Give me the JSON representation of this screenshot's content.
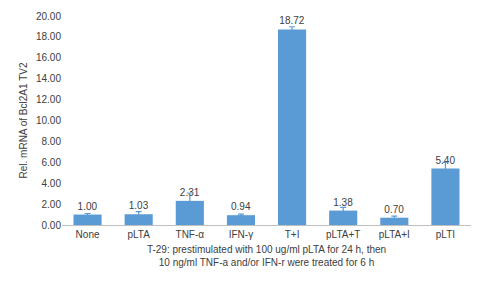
{
  "chart_data": {
    "type": "bar",
    "ylabel": "Rel. mRNA of Bcl2A1 TV2",
    "xlabel": [
      "T-29: prestimulated with 100 ug/ml pLTA for 24 h, then",
      "10 ng/ml TNF-a and/or IFN-r were treated for 6 h"
    ],
    "categories": [
      "None",
      "pLTA",
      "TNF-α",
      "IFN-γ",
      "T+I",
      "pLTA+T",
      "pLTA+I",
      "pLTI"
    ],
    "values": [
      1.0,
      1.03,
      2.31,
      0.94,
      18.72,
      1.38,
      0.7,
      5.4
    ],
    "value_labels": [
      "1.00",
      "1.03",
      "2.31",
      "0.94",
      "18.72",
      "1.38",
      "0.70",
      "5.40"
    ],
    "errors": [
      0.1,
      0.25,
      0.75,
      0.1,
      0.25,
      0.3,
      0.15,
      0.6
    ],
    "color": "#5b9bd5",
    "data_labels": true,
    "grid": false,
    "ylim": [
      0,
      20
    ],
    "yticks": [
      {
        "value": 0,
        "label": "0.00"
      },
      {
        "value": 2,
        "label": "2.00"
      },
      {
        "value": 4,
        "label": "4.00"
      },
      {
        "value": 6,
        "label": "6.00"
      },
      {
        "value": 8,
        "label": "8.00"
      },
      {
        "value": 10,
        "label": "10.00"
      },
      {
        "value": 12,
        "label": "12.00"
      },
      {
        "value": 14,
        "label": "14.00"
      },
      {
        "value": 16,
        "label": "16.00"
      },
      {
        "value": 18,
        "label": "18.00"
      },
      {
        "value": 20,
        "label": "20.00"
      }
    ]
  }
}
